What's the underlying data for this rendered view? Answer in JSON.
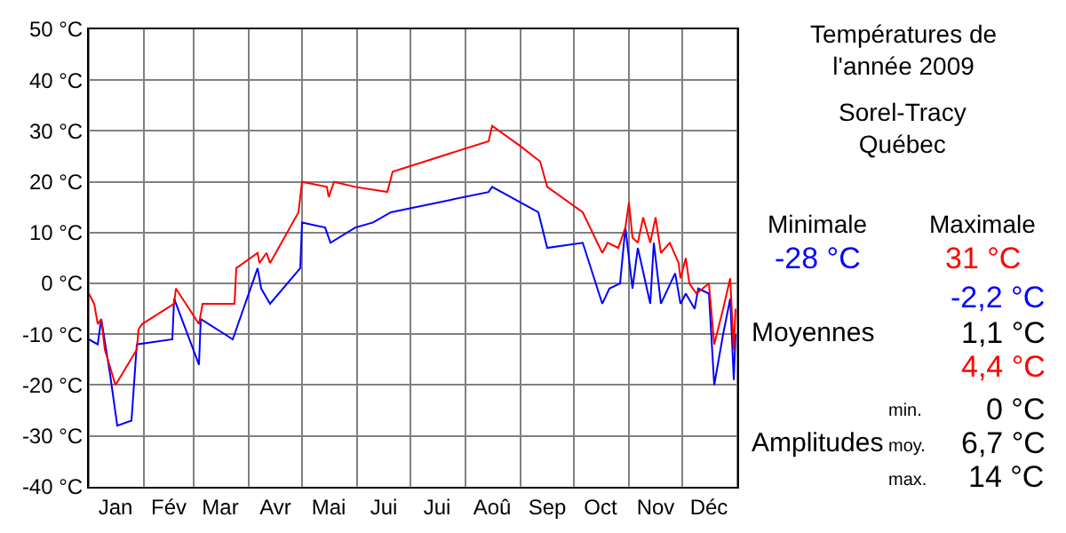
{
  "chart_data": {
    "type": "line",
    "title": "Températures de\nl'année 2009",
    "subtitle": "Sorel-Tracy\nQuébec",
    "series": [
      {
        "color": "#0000ff",
        "x": [
          "2009-01-01",
          "2009-01-06",
          "2009-01-08",
          "2009-01-13",
          "2009-01-17",
          "2009-01-25",
          "2009-01-28",
          "2009-02-17",
          "2009-02-18",
          "2009-03-04",
          "2009-03-05",
          "2009-03-23",
          "2009-04-06",
          "2009-04-08",
          "2009-04-13",
          "2009-04-30",
          "2009-05-01",
          "2009-05-14",
          "2009-05-17",
          "2009-05-31",
          "2009-06-10",
          "2009-06-20",
          "2009-08-14",
          "2009-08-16",
          "2009-09-11",
          "2009-09-16",
          "2009-10-06",
          "2009-10-17",
          "2009-10-21",
          "2009-10-27",
          "2009-10-30",
          "2009-11-03",
          "2009-11-06",
          "2009-11-13",
          "2009-11-15",
          "2009-11-19",
          "2009-11-27",
          "2009-11-30",
          "2009-12-03",
          "2009-12-08",
          "2009-12-10",
          "2009-12-16",
          "2009-12-19",
          "2009-12-24",
          "2009-12-28",
          "2009-12-30",
          "2009-12-31"
        ],
        "values": [
          -11,
          -12,
          -7,
          -18,
          -28,
          -27,
          -12,
          -11,
          -3,
          -16,
          -7,
          -11,
          3,
          -1,
          -4,
          3,
          12,
          11,
          8,
          11,
          12,
          14,
          18,
          19,
          14,
          7,
          8,
          -4,
          -1,
          0,
          11,
          -1,
          7,
          -4,
          8,
          -4,
          2,
          -4,
          -2,
          -5,
          -1,
          -2,
          -20,
          -10,
          -3,
          -19,
          -10
        ]
      },
      {
        "color": "#ff0000",
        "x": [
          "2009-01-01",
          "2009-01-04",
          "2009-01-06",
          "2009-01-08",
          "2009-01-10",
          "2009-01-16",
          "2009-01-28",
          "2009-01-29",
          "2009-01-31",
          "2009-02-18",
          "2009-02-19",
          "2009-03-04",
          "2009-03-06",
          "2009-03-24",
          "2009-03-25",
          "2009-04-06",
          "2009-04-07",
          "2009-04-11",
          "2009-04-13",
          "2009-04-29",
          "2009-04-30",
          "2009-05-01",
          "2009-05-15",
          "2009-05-16",
          "2009-05-19",
          "2009-05-31",
          "2009-06-18",
          "2009-06-21",
          "2009-08-14",
          "2009-08-16",
          "2009-09-01",
          "2009-09-12",
          "2009-09-16",
          "2009-10-06",
          "2009-10-17",
          "2009-10-20",
          "2009-10-26",
          "2009-10-30",
          "2009-11-01",
          "2009-11-03",
          "2009-11-06",
          "2009-11-09",
          "2009-11-13",
          "2009-11-16",
          "2009-11-19",
          "2009-11-24",
          "2009-11-29",
          "2009-11-30",
          "2009-12-03",
          "2009-12-05",
          "2009-12-09",
          "2009-12-16",
          "2009-12-19",
          "2009-12-24",
          "2009-12-28",
          "2009-12-30",
          "2009-12-31"
        ],
        "values": [
          -2,
          -4,
          -8,
          -7,
          -13,
          -20,
          -13,
          -9,
          -8,
          -4,
          -1,
          -8,
          -4,
          -4,
          3,
          6,
          4,
          6,
          4,
          14,
          17,
          20,
          19,
          17,
          20,
          19,
          18,
          22,
          28,
          31,
          27,
          24,
          19,
          14,
          6,
          8,
          7,
          11,
          16,
          9,
          8,
          13,
          8,
          13,
          6,
          8,
          4,
          1,
          5,
          0,
          -2,
          0,
          -12,
          -5,
          1,
          -13,
          -5
        ]
      }
    ],
    "xlim": [
      "2009-01-01",
      "2010-01-01"
    ],
    "xticks": [
      {
        "value": "2009-01-01",
        "label": null
      },
      {
        "value": "2009-01-16",
        "label": "Jan"
      },
      {
        "value": "2009-02-01",
        "label": null
      },
      {
        "value": "2009-02-15",
        "label": "Fév"
      },
      {
        "value": "2009-03-01",
        "label": null
      },
      {
        "value": "2009-03-16",
        "label": "Mar"
      },
      {
        "value": "2009-04-01",
        "label": null
      },
      {
        "value": "2009-04-16",
        "label": "Avr"
      },
      {
        "value": "2009-05-01",
        "label": null
      },
      {
        "value": "2009-05-16",
        "label": "Mai"
      },
      {
        "value": "2009-06-01",
        "label": null
      },
      {
        "value": "2009-06-16",
        "label": "Jui"
      },
      {
        "value": "2009-07-01",
        "label": null
      },
      {
        "value": "2009-07-16",
        "label": "Jui"
      },
      {
        "value": "2009-08-01",
        "label": null
      },
      {
        "value": "2009-08-16",
        "label": "Aoû"
      },
      {
        "value": "2009-09-01",
        "label": null
      },
      {
        "value": "2009-09-16",
        "label": "Sep"
      },
      {
        "value": "2009-10-01",
        "label": null
      },
      {
        "value": "2009-10-16",
        "label": "Oct"
      },
      {
        "value": "2009-11-01",
        "label": null
      },
      {
        "value": "2009-11-16",
        "label": "Nov"
      },
      {
        "value": "2009-12-01",
        "label": null
      },
      {
        "value": "2009-12-16",
        "label": "Déc"
      },
      {
        "value": "2010-01-01",
        "label": null
      }
    ],
    "ylim": [
      -40,
      50
    ],
    "yticks": [
      {
        "value": -40,
        "label": "-40 °C"
      },
      {
        "value": -30,
        "label": "-30 °C"
      },
      {
        "value": -20,
        "label": "-20 °C"
      },
      {
        "value": -10,
        "label": "-10 °C"
      },
      {
        "value": 0,
        "label": "0 °C"
      },
      {
        "value": 10,
        "label": "10 °C"
      },
      {
        "value": 20,
        "label": "20 °C"
      },
      {
        "value": 30,
        "label": "30 °C"
      },
      {
        "value": 40,
        "label": "40 °C"
      },
      {
        "value": 50,
        "label": "50 °C"
      }
    ],
    "grid": true,
    "marker": "none",
    "line_style": "solid",
    "annotations": [
      "Minimale",
      "Maximale",
      "-28 °C",
      "31 °C",
      "-2,2 °C",
      "Moyennes",
      "1,1 °C",
      "4,4 °C",
      "Amplitudes",
      "min.",
      "0 °C",
      "moy.",
      "6,7 °C",
      "max.",
      "14 °C"
    ]
  }
}
